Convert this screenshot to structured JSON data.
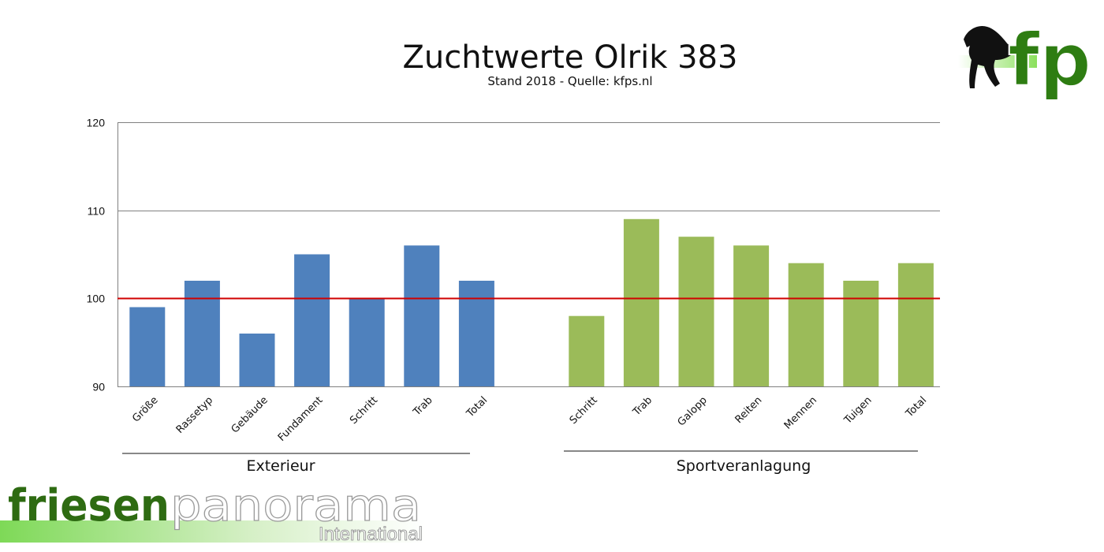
{
  "logo": {
    "top_right_letters": "fp",
    "wordmark_part1": "friesen",
    "wordmark_part2": "panorama",
    "wordmark_sub": "International"
  },
  "colors": {
    "exterieur": "#4f81bd",
    "sport": "#9bbb59",
    "reference_line": "#d00000",
    "grid": "#808080"
  },
  "chart_data": {
    "type": "bar",
    "title": "Zuchtwerte Olrik 383",
    "subtitle": "Stand 2018 - Quelle: kfps.nl",
    "ylim": [
      90,
      120
    ],
    "yticks": [
      "90",
      "100",
      "110",
      "120"
    ],
    "grid": true,
    "reference_line": 100,
    "groups": [
      {
        "name": "Exterieur",
        "categories": [
          "Größe",
          "Rassetyp",
          "Gebäude",
          "Fundament",
          "Schritt",
          "Trab",
          "Total"
        ],
        "values": [
          99,
          102,
          96,
          105,
          100,
          106,
          102
        ]
      },
      {
        "name": "Sportveranlagung",
        "categories": [
          "Schritt",
          "Trab",
          "Galopp",
          "Reiten",
          "Mennen",
          "Tuigen",
          "Total"
        ],
        "values": [
          98,
          109,
          107,
          106,
          104,
          102,
          104
        ]
      }
    ]
  }
}
